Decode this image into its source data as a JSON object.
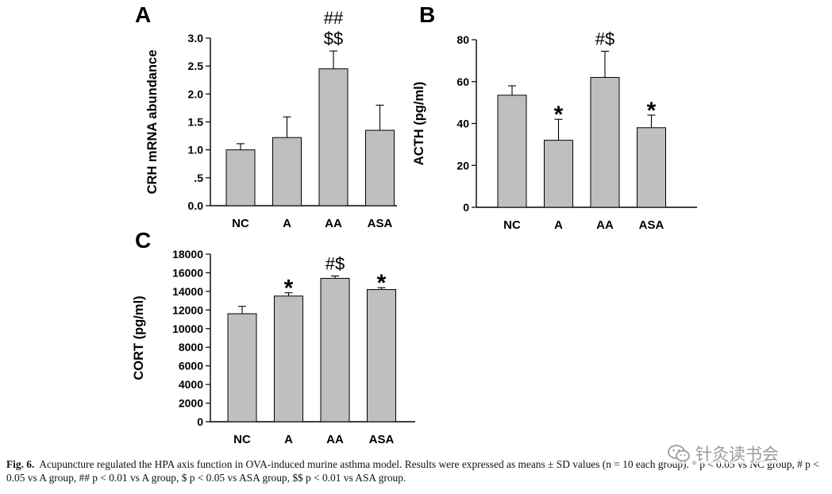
{
  "chart_data": [
    {
      "panel": "A",
      "type": "bar",
      "categories": [
        "NC",
        "A",
        "AA",
        "ASA"
      ],
      "values": [
        1.0,
        1.22,
        2.45,
        1.35
      ],
      "errors": [
        0.11,
        0.37,
        0.32,
        0.45
      ],
      "annotations": [
        "",
        "",
        "##\n$$",
        ""
      ],
      "ylabel": "CRH mRNA abundance",
      "ylim": [
        0,
        3.0
      ],
      "yticks": [
        "0.0",
        ".5",
        "1.0",
        "1.5",
        "2.0",
        "2.5",
        "3.0"
      ],
      "ytick_values": [
        0,
        0.5,
        1.0,
        1.5,
        2.0,
        2.5,
        3.0
      ],
      "bar_color": "#bfbfbf"
    },
    {
      "panel": "B",
      "type": "bar",
      "categories": [
        "NC",
        "A",
        "AA",
        "ASA"
      ],
      "values": [
        53.5,
        32.0,
        62.0,
        38.0
      ],
      "errors": [
        4.5,
        10.0,
        12.5,
        6.0
      ],
      "annotations": [
        "",
        "*",
        "#$",
        "*"
      ],
      "ylabel": "ACTH (pg/ml)",
      "ylim": [
        0,
        80
      ],
      "yticks": [
        "0",
        "20",
        "40",
        "60",
        "80"
      ],
      "ytick_values": [
        0,
        20,
        40,
        60,
        80
      ],
      "bar_color": "#bfbfbf"
    },
    {
      "panel": "C",
      "type": "bar",
      "categories": [
        "NC",
        "A",
        "AA",
        "ASA"
      ],
      "values": [
        11600,
        13500,
        15400,
        14200
      ],
      "errors": [
        800,
        350,
        250,
        200
      ],
      "annotations": [
        "",
        "*",
        "#$",
        "*"
      ],
      "ylabel": "CORT (pg/ml)",
      "ylim": [
        0,
        18000
      ],
      "yticks": [
        "0",
        "2000",
        "4000",
        "6000",
        "8000",
        "10000",
        "12000",
        "14000",
        "16000",
        "18000"
      ],
      "ytick_values": [
        0,
        2000,
        4000,
        6000,
        8000,
        10000,
        12000,
        14000,
        16000,
        18000
      ],
      "bar_color": "#bfbfbf"
    }
  ],
  "caption": {
    "label": "Fig. 6.",
    "text": "Acupuncture regulated the HPA axis function in OVA-induced murine asthma model. Results were expressed as means ± SD values (n = 10 each group). * p < 0.05 vs NC group, # p < 0.05 vs A group, ## p < 0.01 vs A group, $ p < 0.05 vs ASA group, $$ p < 0.01 vs ASA group."
  },
  "watermark": {
    "text": "针灸读书会",
    "icon": "wechat-icon"
  }
}
